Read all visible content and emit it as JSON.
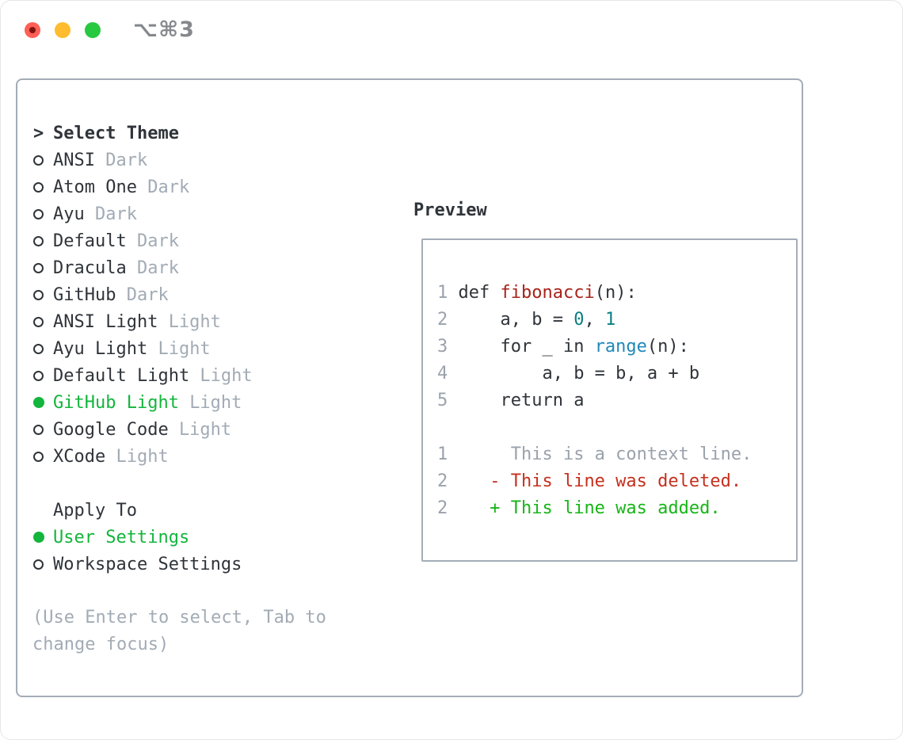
{
  "window": {
    "title": "⌥⌘3",
    "traffic_lights": {
      "close": "#ff5f57",
      "minimize": "#febc2e",
      "zoom": "#28c840"
    }
  },
  "theme_selector": {
    "header_cursor": ">",
    "header_label": "Select Theme",
    "themes": [
      {
        "name": "ANSI",
        "tag": "Dark",
        "selected": false
      },
      {
        "name": "Atom One",
        "tag": "Dark",
        "selected": false
      },
      {
        "name": "Ayu",
        "tag": "Dark",
        "selected": false
      },
      {
        "name": "Default",
        "tag": "Dark",
        "selected": false
      },
      {
        "name": "Dracula",
        "tag": "Dark",
        "selected": false
      },
      {
        "name": "GitHub",
        "tag": "Dark",
        "selected": false
      },
      {
        "name": "ANSI Light",
        "tag": "Light",
        "selected": false
      },
      {
        "name": "Ayu Light",
        "tag": "Light",
        "selected": false
      },
      {
        "name": "Default Light",
        "tag": "Light",
        "selected": false
      },
      {
        "name": "GitHub Light",
        "tag": "Light",
        "selected": true
      },
      {
        "name": "Google Code",
        "tag": "Light",
        "selected": false
      },
      {
        "name": "XCode",
        "tag": "Light",
        "selected": false
      }
    ],
    "apply_to_label": "Apply To",
    "apply_options": [
      {
        "name": "User Settings",
        "selected": true
      },
      {
        "name": "Workspace Settings",
        "selected": false
      }
    ],
    "help_lines": [
      "(Use Enter to select, Tab to",
      "change focus)"
    ]
  },
  "preview": {
    "label": "Preview",
    "code_lines": [
      {
        "num": "1",
        "tokens": [
          {
            "text": "def ",
            "style": "keyword"
          },
          {
            "text": "fibonacci",
            "style": "function"
          },
          {
            "text": "(n):",
            "style": "plain"
          }
        ]
      },
      {
        "num": "2",
        "tokens": [
          {
            "text": "    a, b = ",
            "style": "plain"
          },
          {
            "text": "0",
            "style": "number"
          },
          {
            "text": ", ",
            "style": "plain"
          },
          {
            "text": "1",
            "style": "number"
          }
        ]
      },
      {
        "num": "3",
        "tokens": [
          {
            "text": "    for _ in ",
            "style": "plain"
          },
          {
            "text": "range",
            "style": "builtin"
          },
          {
            "text": "(n):",
            "style": "plain"
          }
        ]
      },
      {
        "num": "4",
        "tokens": [
          {
            "text": "        a, b = b, a + b",
            "style": "plain"
          }
        ]
      },
      {
        "num": "5",
        "tokens": [
          {
            "text": "    return a",
            "style": "plain"
          }
        ]
      }
    ],
    "diff_lines": [
      {
        "num": "1",
        "text": "     This is a context line.",
        "type": "context"
      },
      {
        "num": "2",
        "text": "   - This line was deleted.",
        "type": "deleted"
      },
      {
        "num": "2",
        "text": "   + This line was added.",
        "type": "added"
      }
    ]
  },
  "colors": {
    "text": "#2f343a",
    "muted": "#a2abb5",
    "border": "#a3adb8",
    "accent_green": "#13b53c",
    "diff_red": "#c5301e",
    "diff_green": "#17b517",
    "syntax_function": "#a8231a",
    "syntax_number": "#0b7f84",
    "syntax_builtin": "#2088b8",
    "line_number": "#9aa2ac",
    "title_gray": "#85888c"
  }
}
